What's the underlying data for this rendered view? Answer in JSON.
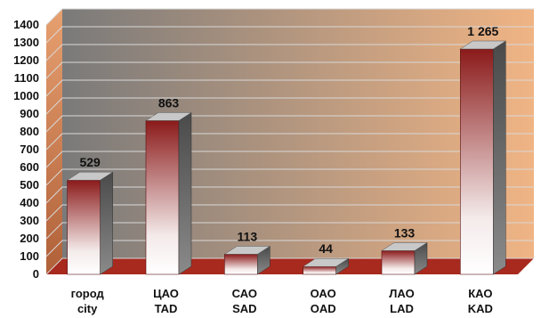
{
  "chart_data": {
    "type": "bar",
    "title": "",
    "xlabel": "",
    "ylabel": "",
    "ylim": [
      0,
      1400
    ],
    "yticks": [
      "0",
      "100",
      "200",
      "300",
      "400",
      "500",
      "600",
      "700",
      "800",
      "900",
      "1000",
      "1100",
      "1200",
      "1300",
      "1400"
    ],
    "grid": true,
    "three_d": true,
    "categories": [
      {
        "line1": "город",
        "line2": "city"
      },
      {
        "line1": "ЦАО",
        "line2": "TAD"
      },
      {
        "line1": "САО",
        "line2": "SAD"
      },
      {
        "line1": "ОАО",
        "line2": "OAD"
      },
      {
        "line1": "ЛАО",
        "line2": "LAD"
      },
      {
        "line1": "КАО",
        "line2": "KAD"
      }
    ],
    "values": [
      529,
      863,
      113,
      44,
      133,
      1265
    ],
    "data_labels": [
      "529",
      "863",
      "113",
      "44",
      "133",
      "1 265"
    ],
    "colors": {
      "bar_top": "#8b1a1a",
      "bar_bottom": "#ffffff",
      "bar_side": "#6e6e6e",
      "bar_lid": "#c8c8c8",
      "wall_left": "#7a7a7a",
      "wall_right": "#f0b484",
      "floor": "#a8291e",
      "grid": "#d8d8d8",
      "side_wall": "#cc7a50"
    }
  }
}
